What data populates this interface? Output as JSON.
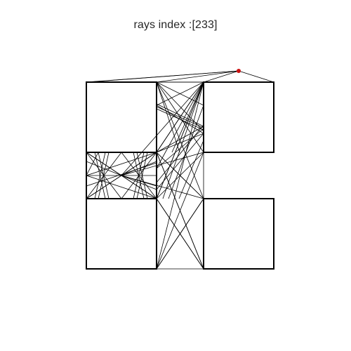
{
  "title": "rays index :[233]",
  "colors": {
    "walls": "#000000",
    "rays": "#000000",
    "source": "#cc1111",
    "title_text": "#262626",
    "background": "#ffffff"
  }
}
